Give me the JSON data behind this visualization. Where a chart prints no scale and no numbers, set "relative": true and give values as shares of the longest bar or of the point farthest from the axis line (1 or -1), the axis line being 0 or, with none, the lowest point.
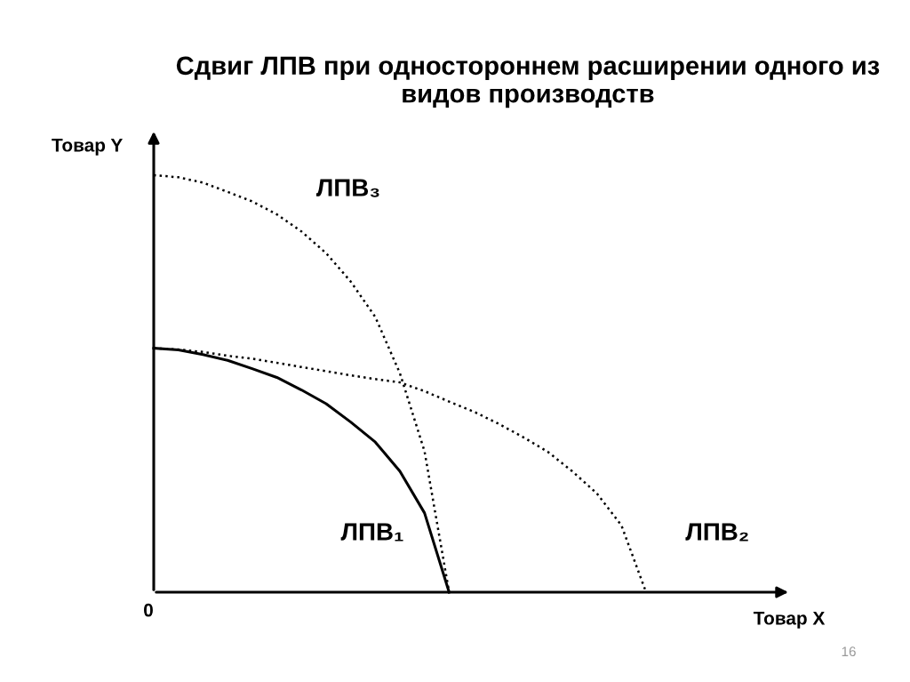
{
  "chart_data": {
    "type": "line",
    "title": "Сдвиг ЛПВ при одностороннем расширении одного из видов производств",
    "ylabel": "Товар Y",
    "relative": true,
    "marker": "none",
    "categories": [
      null,
      null,
      null,
      null,
      null,
      null,
      null,
      null,
      null,
      null,
      null,
      null,
      null,
      null,
      null,
      null,
      null,
      null,
      null,
      null,
      null
    ],
    "series": [
      {
        "name": "ЛПВ₁",
        "color": "#000000",
        "line_style": "solid",
        "values": [
          0.585,
          0.581,
          0.57,
          0.556,
          0.536,
          0.515,
          0.485,
          0.452,
          0.408,
          0.36,
          0.29,
          0.19,
          0,
          null,
          null,
          null,
          null,
          null,
          null,
          null,
          null
        ]
      },
      {
        "name": "ЛПВ₂",
        "color": "#000000",
        "line_style": "dotted",
        "values": [
          0.585,
          0.582,
          0.576,
          0.567,
          0.56,
          0.55,
          0.54,
          0.53,
          0.52,
          0.511,
          0.503,
          0.482,
          0.457,
          0.433,
          0.404,
          0.372,
          0.337,
          0.29,
          0.237,
          0.16,
          0
        ]
      },
      {
        "name": "ЛПВ₃",
        "color": "#000000",
        "line_style": "dotted",
        "values": [
          1.0,
          0.995,
          0.982,
          0.96,
          0.937,
          0.906,
          0.865,
          0.813,
          0.745,
          0.66,
          0.525,
          0.338,
          0,
          null,
          null,
          null,
          null,
          null,
          null,
          null,
          null
        ]
      }
    ],
    "annotations": [
      "0",
      "Товар X",
      "16"
    ]
  }
}
